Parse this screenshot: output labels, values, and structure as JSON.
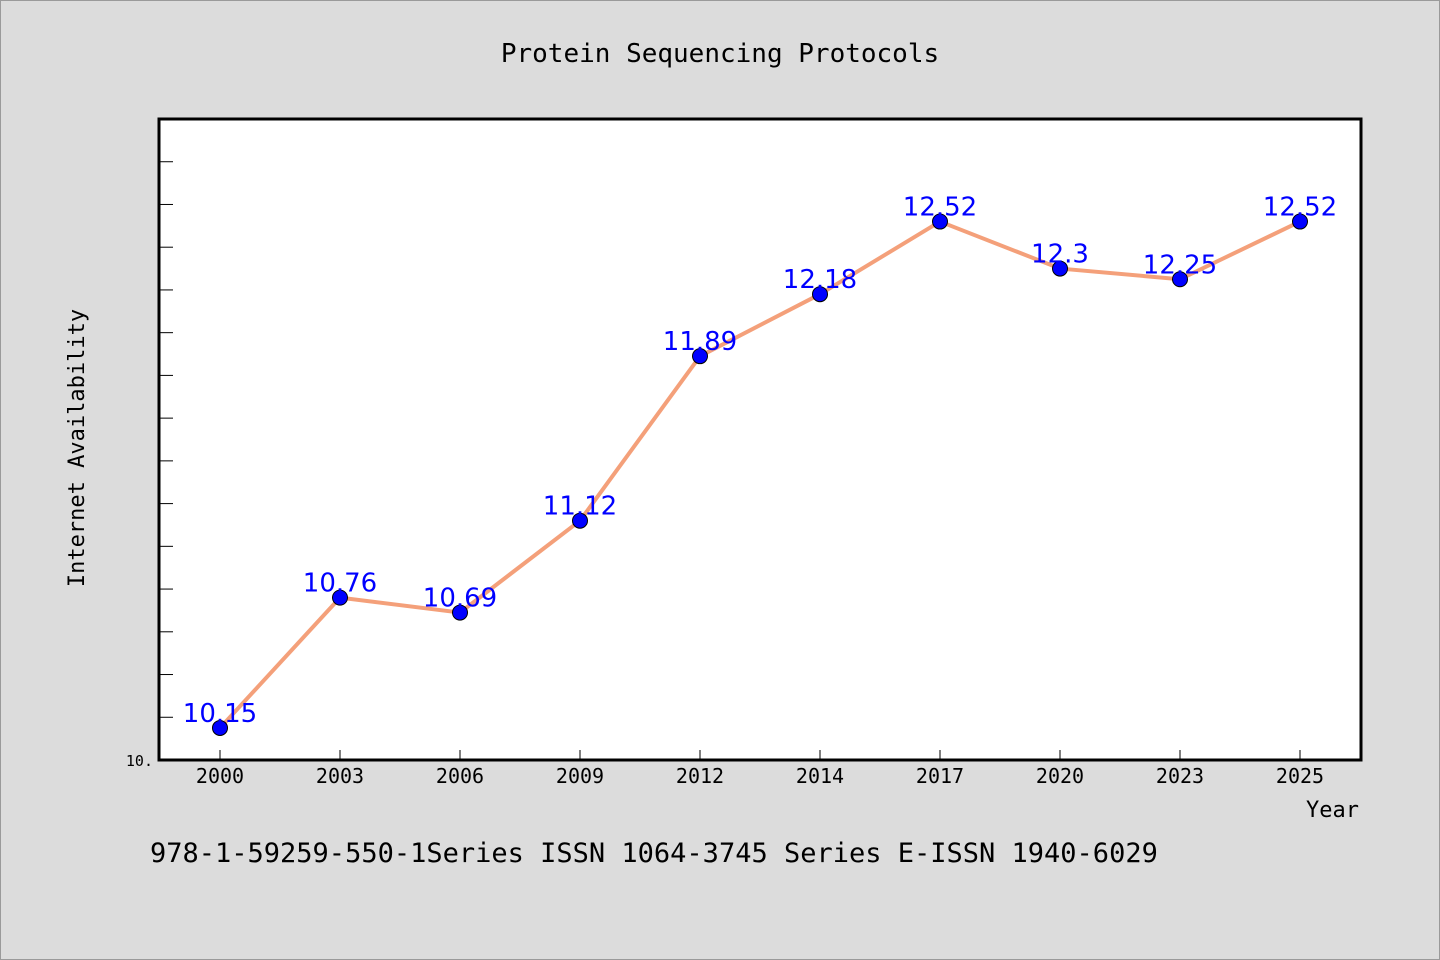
{
  "chart_data": {
    "type": "line",
    "title": "Protein Sequencing Protocols",
    "xlabel": "Year",
    "ylabel": "Internet Availability",
    "categories": [
      "2000",
      "2003",
      "2006",
      "2009",
      "2012",
      "2014",
      "2017",
      "2020",
      "2023",
      "2025"
    ],
    "series": [
      {
        "values": [
          10.15,
          10.76,
          10.69,
          11.12,
          11.89,
          12.18,
          12.52,
          12.3,
          12.25,
          12.52
        ]
      }
    ],
    "data_labels": [
      "10.15",
      "10.76",
      "10.69",
      "11.12",
      "11.89",
      "12.18",
      "12.52",
      "12.3",
      "12.25",
      "12.52"
    ],
    "ylim": [
      10.0,
      13.0
    ],
    "ytick_labels": [
      "10."
    ],
    "grid": false,
    "colors": {
      "line": "#f4a07a",
      "marker": "#0000ff",
      "label": "#0000ff",
      "background": "#dcdcdc",
      "plot_area": "#ffffff"
    }
  },
  "footer": "978-1-59259-550-1Series ISSN 1064-3745 Series E-ISSN 1940-6029"
}
